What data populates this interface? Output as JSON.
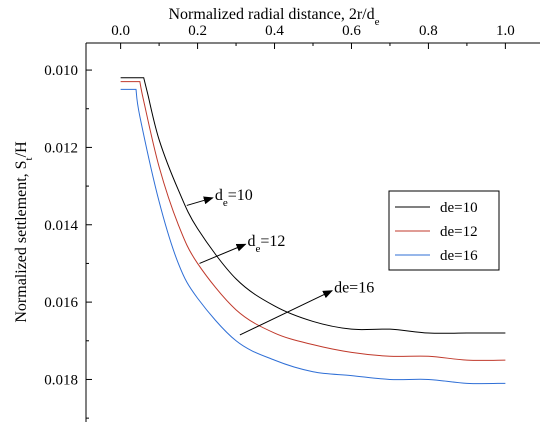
{
  "chart_data": {
    "type": "line",
    "xlabel_main": "Normalized radial distance, 2r/d",
    "xlabel_sub": "e",
    "ylabel_main": "Normalized settlement, S",
    "ylabel_sub": "t",
    "ylabel_tail": "/H",
    "x_axis_position": "top",
    "y_inverted": true,
    "xlim": [
      -0.09,
      1.09
    ],
    "ylim": [
      0.0093,
      0.0191
    ],
    "xticks": [
      0.0,
      0.2,
      0.4,
      0.6,
      0.8,
      1.0
    ],
    "xtick_labels": [
      "0.0",
      "0.2",
      "0.4",
      "0.6",
      "0.8",
      "1.0"
    ],
    "yticks": [
      0.01,
      0.012,
      0.014,
      0.016,
      0.018
    ],
    "ytick_labels": [
      "0.010",
      "0.012",
      "0.014",
      "0.016",
      "0.018"
    ],
    "grid": false,
    "legend_position": "center-right",
    "series": [
      {
        "name": "de=10",
        "color": "#000000",
        "x": [
          0.0,
          0.06,
          0.07,
          0.1,
          0.15,
          0.2,
          0.3,
          0.4,
          0.5,
          0.6,
          0.7,
          0.8,
          0.9,
          1.0
        ],
        "y": [
          0.0102,
          0.0102,
          0.0106,
          0.0118,
          0.0131,
          0.0141,
          0.0154,
          0.0161,
          0.0165,
          0.0167,
          0.0167,
          0.0168,
          0.0168,
          0.0168
        ]
      },
      {
        "name": "de=12",
        "color": "#c0392b",
        "x": [
          0.0,
          0.05,
          0.06,
          0.1,
          0.15,
          0.2,
          0.3,
          0.4,
          0.5,
          0.6,
          0.7,
          0.8,
          0.9,
          1.0
        ],
        "y": [
          0.0103,
          0.0103,
          0.0108,
          0.0125,
          0.014,
          0.015,
          0.0162,
          0.0168,
          0.0171,
          0.0173,
          0.0174,
          0.0174,
          0.0175,
          0.0175
        ]
      },
      {
        "name": "de=16",
        "color": "#2f6fd6",
        "x": [
          0.0,
          0.04,
          0.05,
          0.1,
          0.15,
          0.2,
          0.3,
          0.4,
          0.5,
          0.6,
          0.7,
          0.8,
          0.9,
          1.0
        ],
        "y": [
          0.0105,
          0.0105,
          0.0112,
          0.0134,
          0.015,
          0.0159,
          0.017,
          0.0175,
          0.0178,
          0.0179,
          0.018,
          0.018,
          0.0181,
          0.0181
        ]
      }
    ],
    "annotations": [
      {
        "text_main": "d",
        "text_sub": "e",
        "text_tail": "=10",
        "tip_x": 0.172,
        "tip_y": 0.0135,
        "label_x": 0.25,
        "label_y": 0.0132
      },
      {
        "text_main": "d",
        "text_sub": "e",
        "text_tail": "=12",
        "tip_x": 0.205,
        "tip_y": 0.015,
        "label_x": 0.335,
        "label_y": 0.0144
      },
      {
        "text_main": "de=16",
        "text_sub": "",
        "text_tail": "",
        "tip_x": 0.31,
        "tip_y": 0.01685,
        "label_x": 0.56,
        "label_y": 0.0156
      }
    ]
  }
}
